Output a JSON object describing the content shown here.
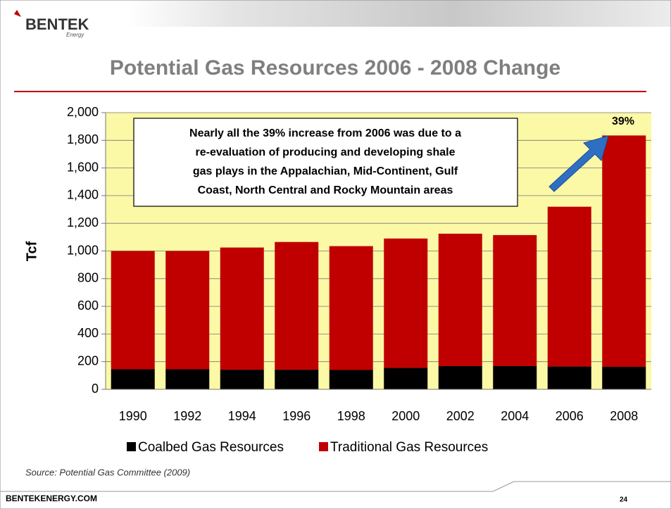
{
  "brand": {
    "name": "BENTEK",
    "sub": "Energy"
  },
  "footer": {
    "site": "BENTEKENERGY.COM",
    "page": "24"
  },
  "chart_data": {
    "type": "stacked_bar",
    "title": "Potential Gas Resources  2006 - 2008 Change",
    "y_label": "Tcf",
    "categories": [
      "1990",
      "1992",
      "1994",
      "1996",
      "1998",
      "2000",
      "2002",
      "2004",
      "2006",
      "2008"
    ],
    "series": [
      {
        "name": "Coalbed Gas Resources",
        "color": "#000000",
        "values": [
          145,
          145,
          142,
          142,
          140,
          155,
          168,
          168,
          165,
          163
        ]
      },
      {
        "name": "Traditional Gas Resources",
        "color": "#c00000",
        "values": [
          855,
          855,
          883,
          923,
          895,
          935,
          957,
          947,
          1155,
          1672
        ]
      }
    ],
    "ylim": [
      0,
      2000
    ],
    "yticks": [
      0,
      200,
      400,
      600,
      800,
      {
        "value": 1000,
        "label": "1,000"
      },
      {
        "value": 1200,
        "label": "1,200"
      },
      {
        "value": 1400,
        "label": "1,400"
      },
      {
        "value": 1600,
        "label": "1,600"
      },
      {
        "value": 1800,
        "label": "1,800"
      },
      {
        "value": 2000,
        "label": "2,000"
      }
    ],
    "callout": "39%",
    "annotation": [
      "Nearly all the 39% increase from 2006 was due to a",
      "re-evaluation of producing and developing shale",
      "gas plays in the Appalachian, Mid-Continent, Gulf",
      "Coast, North Central and Rocky Mountain areas"
    ],
    "source": "Source: Potential Gas Committee (2009)",
    "plot_background": "#fbf8a6"
  }
}
